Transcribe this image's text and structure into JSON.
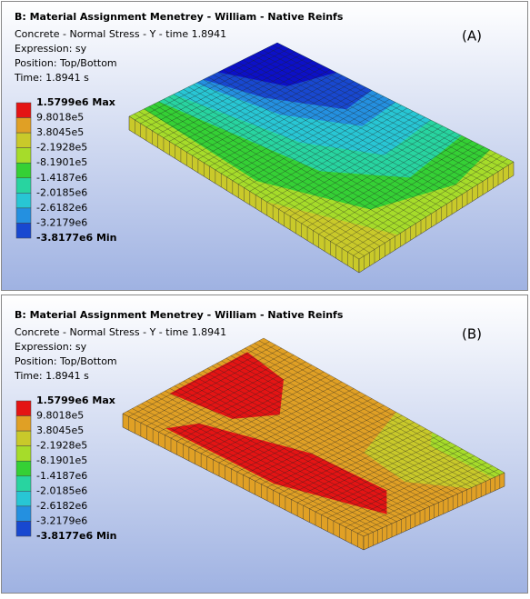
{
  "panels": [
    {
      "title": "B: Material Assignment Menetrey - William - Native Reinfs",
      "lines": [
        "Concrete - Normal Stress - Y - time 1.8941",
        "Expression: sy",
        "Position: Top/Bottom",
        "Time: 1.8941 s"
      ],
      "legend": [
        "1.5799e6 Max",
        "9.8018e5",
        "3.8045e5",
        "-2.1928e5",
        "-8.1901e5",
        "-1.4187e6",
        "-2.0185e6",
        "-2.6182e6",
        "-3.2179e6",
        "-3.8177e6 Min"
      ],
      "tag": "(A)"
    },
    {
      "title": "B: Material Assignment Menetrey - William - Native Reinfs",
      "lines": [
        "Concrete - Normal Stress - Y - time 1.8941",
        "Expression: sy",
        "Position: Top/Bottom",
        "Time: 1.8941 s"
      ],
      "legend": [
        "1.5799e6 Max",
        "9.8018e5",
        "3.8045e5",
        "-2.1928e5",
        "-8.1901e5",
        "-1.4187e6",
        "-2.0185e6",
        "-2.6182e6",
        "-3.2179e6",
        "-3.8177e6 Min"
      ],
      "tag": "(B)"
    }
  ]
}
